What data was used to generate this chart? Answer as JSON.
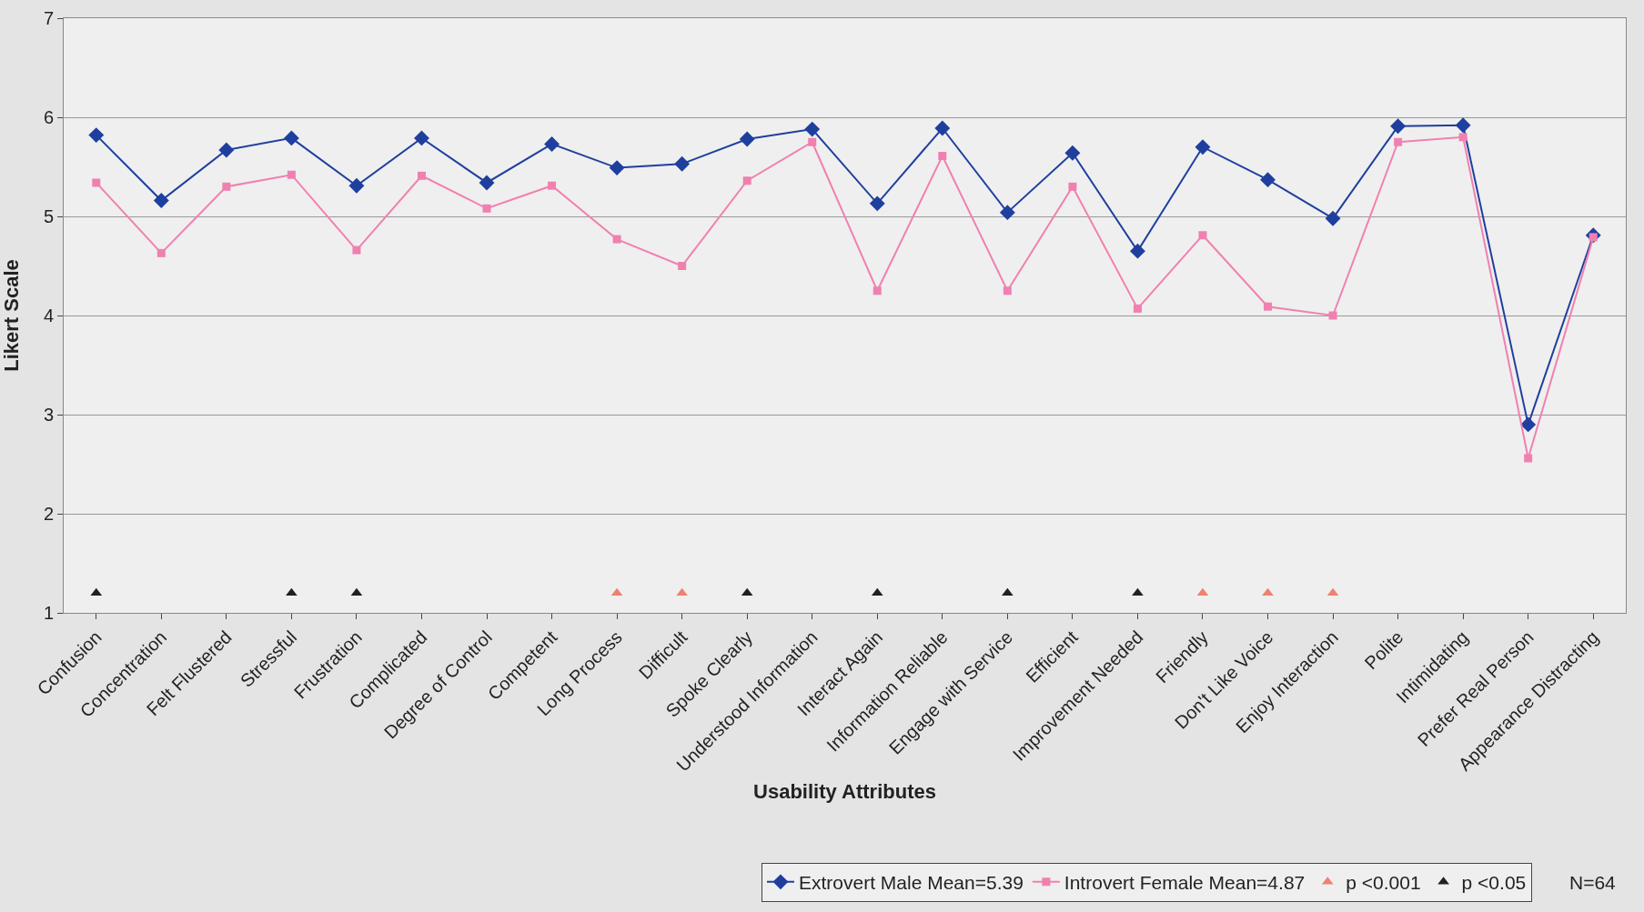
{
  "chart_data": {
    "type": "line",
    "xlabel": "Usability Attributes",
    "ylabel": "Likert Scale",
    "categories": [
      "Confusion",
      "Concentration",
      "Felt Flustered",
      "Stressful",
      "Frustration",
      "Complicated",
      "Degree of Control",
      "Competent",
      "Long Process",
      "Difficult",
      "Spoke Clearly",
      "Understood Information",
      "Interact Again",
      "Information Reliable",
      "Engage with Service",
      "Efficient",
      "Improvement Needed",
      "Friendly",
      "Don't Like Voice",
      "Enjoy Interaction",
      "Polite",
      "Intimidating",
      "Prefer Real Person",
      "Appearance Distracting"
    ],
    "series": [
      {
        "name": "Extrovert Male Mean=5.39",
        "color": "#1f3f9f",
        "marker": "diamond",
        "values": [
          5.82,
          5.16,
          5.67,
          5.79,
          5.31,
          5.79,
          5.34,
          5.73,
          5.49,
          5.53,
          5.78,
          5.88,
          5.13,
          5.89,
          5.04,
          5.64,
          4.65,
          5.7,
          5.37,
          4.98,
          5.91,
          5.92,
          2.9,
          4.81
        ]
      },
      {
        "name": "Introvert Female Mean=4.87",
        "color": "#f080b0",
        "marker": "square",
        "values": [
          5.34,
          4.63,
          5.3,
          5.42,
          4.66,
          5.41,
          5.08,
          5.31,
          4.77,
          4.5,
          5.36,
          5.75,
          4.25,
          5.61,
          4.25,
          5.3,
          4.07,
          4.81,
          4.09,
          4.0,
          5.75,
          5.8,
          2.56,
          4.79
        ]
      },
      {
        "name": "p <0.001",
        "type": "scatter",
        "color": "#f08070",
        "marker": "triangle",
        "x": [
          "Long Process",
          "Difficult",
          "Friendly",
          "Don't Like Voice",
          "Enjoy Interaction"
        ],
        "values": [
          1.2,
          1.2,
          1.2,
          1.2,
          1.2
        ]
      },
      {
        "name": "p <0.05",
        "type": "scatter",
        "color": "#202020",
        "marker": "triangle",
        "x": [
          "Confusion",
          "Stressful",
          "Frustration",
          "Spoke Clearly",
          "Interact Again",
          "Engage with Service",
          "Improvement Needed"
        ],
        "values": [
          1.2,
          1.2,
          1.2,
          1.2,
          1.2,
          1.2,
          1.2
        ]
      }
    ],
    "ylim": [
      1,
      7
    ],
    "yticks": [
      1,
      2,
      3,
      4,
      5,
      6,
      7
    ],
    "grid": "y",
    "legend": "bottom",
    "annotations": [
      "N=64"
    ]
  }
}
